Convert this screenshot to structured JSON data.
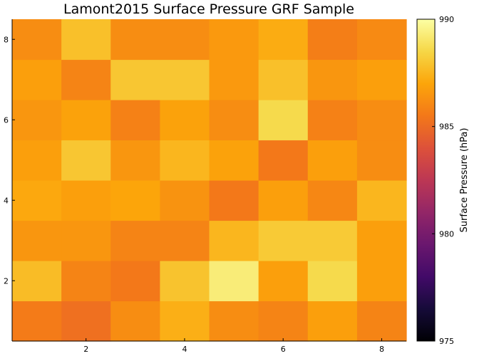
{
  "chart_data": {
    "type": "heatmap",
    "title": "Lamont2015 Surface Pressure GRF Sample",
    "xlabel": "",
    "ylabel": "",
    "x": [
      1,
      2,
      3,
      4,
      5,
      6,
      7,
      8
    ],
    "y": [
      1,
      2,
      3,
      4,
      5,
      6,
      7,
      8
    ],
    "xlim": [
      0.5,
      8.5
    ],
    "ylim": [
      0.5,
      8.5
    ],
    "xticks": [
      2,
      4,
      6,
      8
    ],
    "yticks": [
      2,
      4,
      6,
      8
    ],
    "grid": false,
    "z": [
      [
        985.6,
        985.2,
        986.2,
        987.3,
        986.2,
        985.9,
        986.8,
        985.9
      ],
      [
        987.7,
        985.9,
        985.5,
        987.9,
        989.3,
        986.8,
        988.6,
        986.8
      ],
      [
        986.5,
        986.5,
        985.9,
        985.9,
        987.5,
        988.1,
        988.1,
        986.8
      ],
      [
        987.1,
        986.8,
        987.0,
        986.4,
        985.5,
        986.8,
        986.0,
        987.5
      ],
      [
        986.8,
        988.0,
        986.5,
        987.5,
        986.9,
        985.5,
        986.8,
        986.2
      ],
      [
        986.5,
        986.9,
        985.8,
        986.9,
        986.2,
        988.6,
        985.8,
        986.2
      ],
      [
        986.8,
        985.9,
        988.0,
        988.0,
        986.6,
        987.8,
        986.5,
        986.8
      ],
      [
        986.2,
        987.8,
        986.2,
        986.2,
        986.6,
        987.2,
        985.7,
        986.1
      ]
    ],
    "colorbar": {
      "label": "Surface Pressure (hPa)",
      "min": 975,
      "max": 990,
      "ticks": [
        975,
        980,
        985,
        990
      ],
      "colormap": "inferno"
    }
  }
}
